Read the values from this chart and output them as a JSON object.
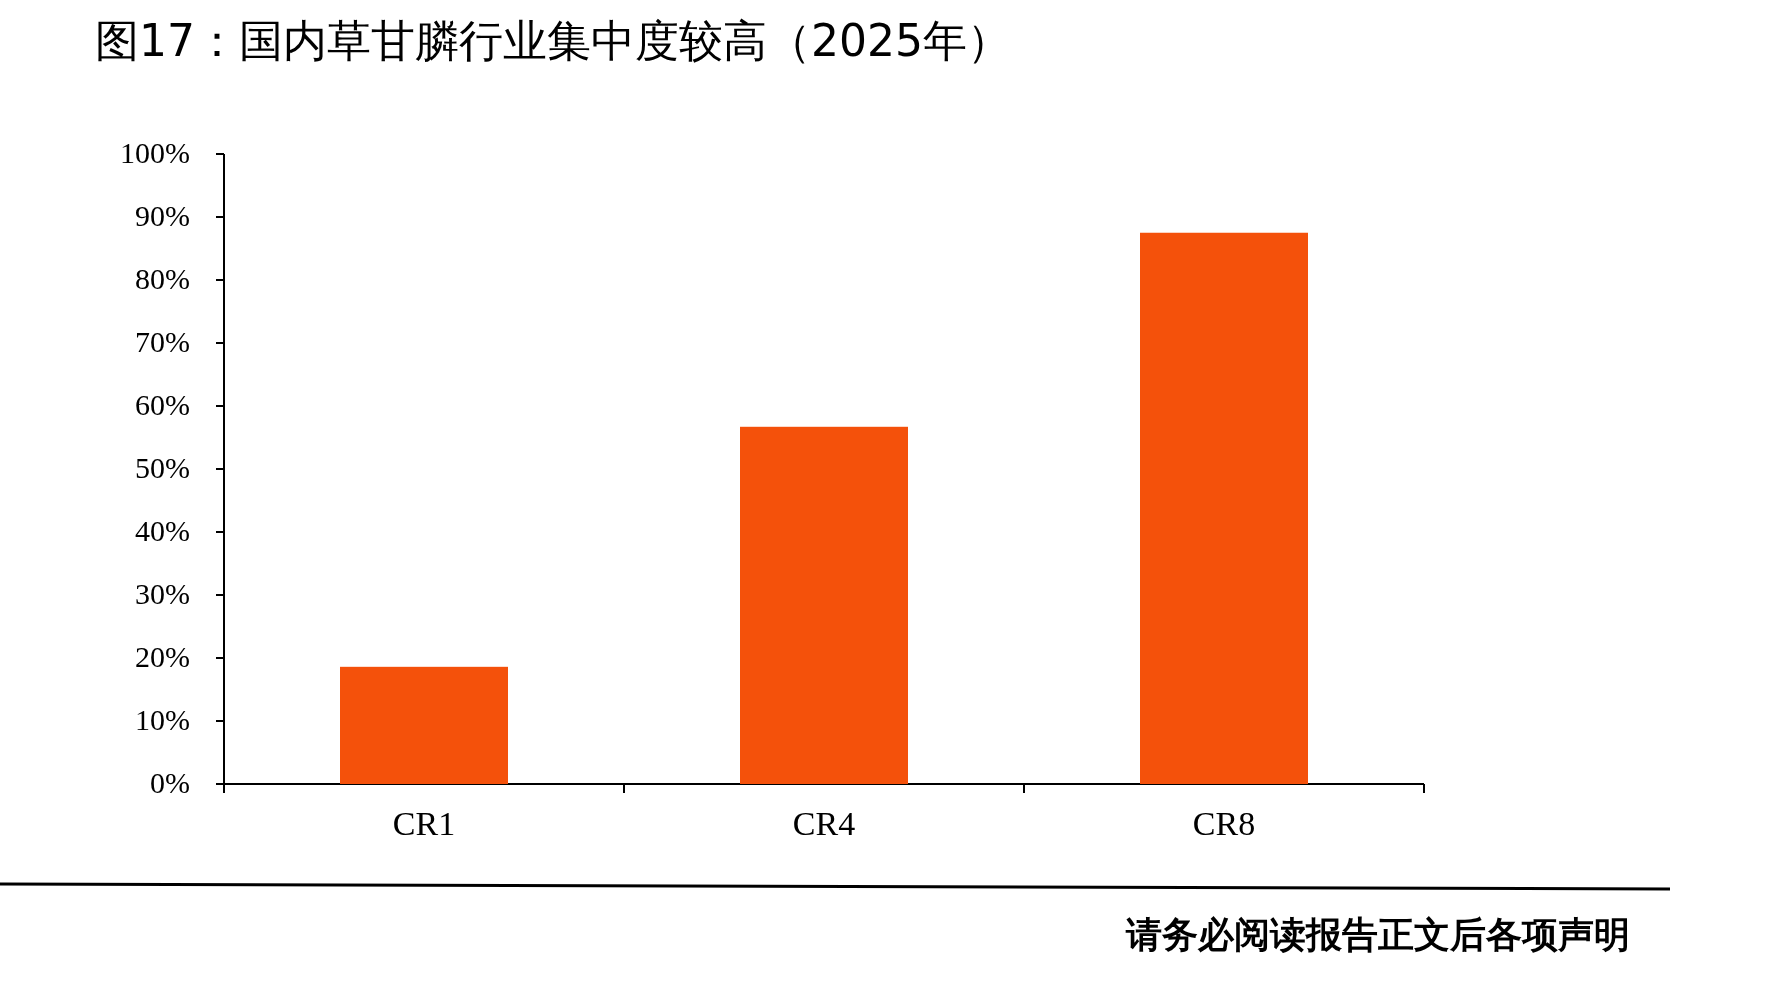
{
  "chart_data": {
    "type": "bar",
    "title": "图17：国内草甘膦行业集中度较高（2025年）",
    "categories": [
      "CR1",
      "CR4",
      "CR8"
    ],
    "values": [
      18.6,
      56.7,
      87.5
    ],
    "color": "#f4510b",
    "ylim": [
      0,
      100
    ],
    "yticks": [
      {
        "value": 0,
        "label": "0%"
      },
      {
        "value": 10,
        "label": "10%"
      },
      {
        "value": 20,
        "label": "20%"
      },
      {
        "value": 30,
        "label": "30%"
      },
      {
        "value": 40,
        "label": "40%"
      },
      {
        "value": 50,
        "label": "50%"
      },
      {
        "value": 60,
        "label": "60%"
      },
      {
        "value": 70,
        "label": "70%"
      },
      {
        "value": 80,
        "label": "80%"
      },
      {
        "value": 90,
        "label": "90%"
      },
      {
        "value": 100,
        "label": "100%"
      }
    ],
    "annotations": [
      "请务必阅读报告正文后各项声明"
    ]
  }
}
